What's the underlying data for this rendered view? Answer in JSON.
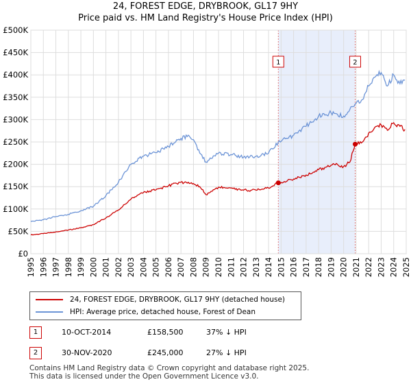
{
  "header": {
    "title": "24, FOREST EDGE, DRYBROOK, GL17 9HY",
    "subtitle": "Price paid vs. HM Land Registry's House Price Index (HPI)"
  },
  "colors": {
    "price_line": "#cc0000",
    "hpi_line": "#6b93d6",
    "shade": "#e8eefb",
    "grid": "#dddddd",
    "sale_vline": "#e07a7a"
  },
  "chart_data": {
    "type": "line",
    "title": "Price paid vs. HM Land Registry's House Price Index (HPI)",
    "xlabel": "",
    "ylabel": "",
    "xlim": [
      1995,
      2025
    ],
    "ylim": [
      0,
      500000
    ],
    "grid": true,
    "y_ticks": [
      0,
      50000,
      100000,
      150000,
      200000,
      250000,
      300000,
      350000,
      400000,
      450000,
      500000
    ],
    "y_tick_labels": [
      "£0",
      "£50K",
      "£100K",
      "£150K",
      "£200K",
      "£250K",
      "£300K",
      "£350K",
      "£400K",
      "£450K",
      "£500K"
    ],
    "x_ticks": [
      1995,
      1996,
      1997,
      1998,
      1999,
      2000,
      2001,
      2002,
      2003,
      2004,
      2005,
      2006,
      2007,
      2008,
      2009,
      2010,
      2011,
      2012,
      2013,
      2014,
      2015,
      2016,
      2017,
      2018,
      2019,
      2020,
      2021,
      2022,
      2023,
      2024,
      2025
    ],
    "x_tick_labels": [
      "1995",
      "1996",
      "1997",
      "1998",
      "1999",
      "2000",
      "2001",
      "2002",
      "2003",
      "2004",
      "2005",
      "2006",
      "2007",
      "2008",
      "2009",
      "2010",
      "2011",
      "2012",
      "2013",
      "2014",
      "2015",
      "2016",
      "2017",
      "2018",
      "2019",
      "2020",
      "2021",
      "2022",
      "2023",
      "2024",
      "2025"
    ],
    "shaded_range": [
      2014.78,
      2020.92
    ],
    "series": [
      {
        "name": "24, FOREST EDGE, DRYBROOK, GL17 9HY (detached house)",
        "x": [
          1995.0,
          1996.0,
          1997.0,
          1998.0,
          1999.0,
          2000.0,
          2001.0,
          2002.0,
          2003.0,
          2004.0,
          2005.0,
          2006.0,
          2007.0,
          2007.5,
          2008.0,
          2008.5,
          2009.0,
          2010.0,
          2011.0,
          2012.0,
          2013.0,
          2014.0,
          2014.78,
          2015.5,
          2016.0,
          2017.0,
          2018.0,
          2019.0,
          2019.5,
          2020.0,
          2020.5,
          2020.92,
          2021.5,
          2022.0,
          2022.5,
          2023.0,
          2023.5,
          2024.0,
          2024.5,
          2024.9
        ],
        "values": [
          42000,
          45000,
          49000,
          53000,
          58000,
          65000,
          80000,
          98000,
          122000,
          137000,
          143000,
          152000,
          160000,
          158000,
          157000,
          150000,
          132000,
          149000,
          147000,
          142000,
          142000,
          147000,
          158500,
          163000,
          167000,
          176000,
          188000,
          198000,
          200000,
          195000,
          205000,
          245000,
          250000,
          270000,
          283000,
          288000,
          276000,
          293000,
          285000,
          278000
        ]
      },
      {
        "name": "HPI: Average price, detached house, Forest of Dean",
        "x": [
          1995.0,
          1996.0,
          1997.0,
          1998.0,
          1999.0,
          2000.0,
          2001.0,
          2002.0,
          2003.0,
          2004.0,
          2005.0,
          2006.0,
          2007.0,
          2007.5,
          2008.0,
          2008.5,
          2009.0,
          2010.0,
          2011.0,
          2012.0,
          2013.0,
          2014.0,
          2014.78,
          2015.5,
          2016.0,
          2017.0,
          2018.0,
          2019.0,
          2019.5,
          2020.0,
          2020.5,
          2020.92,
          2021.5,
          2022.0,
          2022.5,
          2023.0,
          2023.5,
          2024.0,
          2024.5,
          2024.9
        ],
        "values": [
          72000,
          76000,
          83000,
          88000,
          96000,
          106000,
          130000,
          160000,
          200000,
          218000,
          226000,
          240000,
          258000,
          262000,
          255000,
          225000,
          205000,
          225000,
          222000,
          216000,
          218000,
          225000,
          250000,
          258000,
          265000,
          285000,
          308000,
          315000,
          312000,
          308000,
          323000,
          335000,
          345000,
          375000,
          395000,
          405000,
          375000,
          400000,
          380000,
          388000
        ]
      }
    ],
    "sales": [
      {
        "marker": "1",
        "x": 2014.78,
        "date": "10-OCT-2014",
        "price": 158500,
        "price_label": "£158,500",
        "hpi_label": "37% ↓ HPI"
      },
      {
        "marker": "2",
        "x": 2020.92,
        "date": "30-NOV-2020",
        "price": 245000,
        "price_label": "£245,000",
        "hpi_label": "27% ↓ HPI"
      }
    ]
  },
  "legend": {
    "items": [
      {
        "label": "24, FOREST EDGE, DRYBROOK, GL17 9HY (detached house)"
      },
      {
        "label": "HPI: Average price, detached house, Forest of Dean"
      }
    ]
  },
  "footer": {
    "line1": "Contains HM Land Registry data © Crown copyright and database right 2025.",
    "line2": "This data is licensed under the Open Government Licence v3.0."
  }
}
